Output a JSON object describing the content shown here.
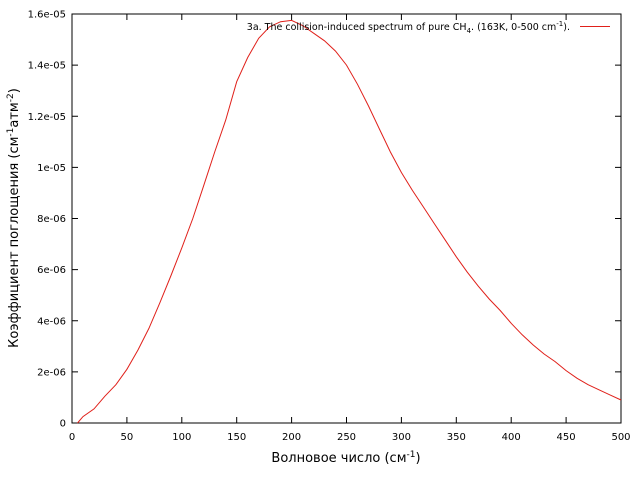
{
  "chart_data": {
    "type": "line",
    "xlabel": {
      "main": "Волновое число (см",
      "sup": "-1",
      "tail": ")"
    },
    "ylabel": {
      "a": "Коэффициент поглощения (см",
      "sup1": "-1",
      "b": "атм",
      "sup2": "-2",
      "c": ")"
    },
    "xlim": [
      0,
      500
    ],
    "ylim": [
      0,
      1.6e-05
    ],
    "x_ticks": [
      {
        "value": 0,
        "label": "0"
      },
      {
        "value": 50,
        "label": "50"
      },
      {
        "value": 100,
        "label": "100"
      },
      {
        "value": 150,
        "label": "150"
      },
      {
        "value": 200,
        "label": "200"
      },
      {
        "value": 250,
        "label": "250"
      },
      {
        "value": 300,
        "label": "300"
      },
      {
        "value": 350,
        "label": "350"
      },
      {
        "value": 400,
        "label": "400"
      },
      {
        "value": 450,
        "label": "450"
      },
      {
        "value": 500,
        "label": "500"
      }
    ],
    "y_ticks": [
      {
        "value": 0,
        "label": "0"
      },
      {
        "value": 2e-06,
        "label": "2e-06"
      },
      {
        "value": 4e-06,
        "label": "4e-06"
      },
      {
        "value": 6e-06,
        "label": "6e-06"
      },
      {
        "value": 8e-06,
        "label": "8e-06"
      },
      {
        "value": 1e-05,
        "label": "1e-05"
      },
      {
        "value": 1.2e-05,
        "label": "1.2e-05"
      },
      {
        "value": 1.4e-05,
        "label": "1.4e-05"
      },
      {
        "value": 1.6e-05,
        "label": "1.6e-05"
      }
    ],
    "grid": false,
    "legend_position": "top-right",
    "series": [
      {
        "name": "3a. The collision-induced spectrum of pure CH4. (163K, 0-500 cm-1).",
        "legend": {
          "a": "3a. The collision-induced spectrum of pure CH",
          "sub": "4",
          "b": ". (163K, 0-500 cm",
          "sup": "-1",
          "c": ")."
        },
        "color": "#e0201a",
        "x": [
          5,
          10,
          20,
          30,
          40,
          50,
          60,
          70,
          80,
          90,
          100,
          110,
          120,
          130,
          140,
          150,
          160,
          170,
          180,
          190,
          200,
          210,
          220,
          230,
          240,
          250,
          260,
          270,
          280,
          290,
          300,
          310,
          320,
          330,
          340,
          350,
          360,
          370,
          380,
          390,
          400,
          410,
          420,
          430,
          440,
          450,
          460,
          470,
          480,
          490,
          500
        ],
        "y": [
          0,
          2.5e-07,
          5.5e-07,
          1.05e-06,
          1.5e-06,
          2.1e-06,
          2.85e-06,
          3.7e-06,
          4.7e-06,
          5.75e-06,
          6.85e-06,
          8e-06,
          9.3e-06,
          1.06e-05,
          1.185e-05,
          1.335e-05,
          1.43e-05,
          1.505e-05,
          1.55e-05,
          1.57e-05,
          1.575e-05,
          1.555e-05,
          1.525e-05,
          1.495e-05,
          1.455e-05,
          1.4e-05,
          1.325e-05,
          1.24e-05,
          1.15e-05,
          1.06e-05,
          9.8e-06,
          9.1e-06,
          8.45e-06,
          7.8e-06,
          7.15e-06,
          6.5e-06,
          5.9e-06,
          5.35e-06,
          4.85e-06,
          4.4e-06,
          3.9e-06,
          3.45e-06,
          3.05e-06,
          2.7e-06,
          2.4e-06,
          2.05e-06,
          1.75e-06,
          1.5e-06,
          1.3e-06,
          1.1e-06,
          9e-07
        ]
      }
    ]
  }
}
